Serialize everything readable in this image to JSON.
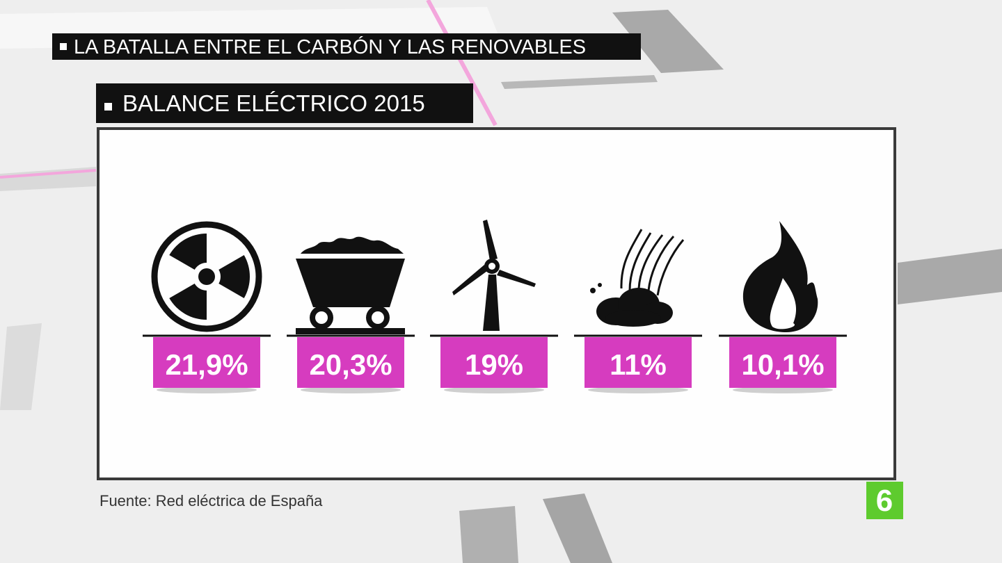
{
  "header": {
    "kicker": "LA BATALLA ENTRE EL CARBÓN Y LAS RENOVABLES",
    "title": "BALANCE ELÉCTRICO 2015"
  },
  "items": [
    "21,9%",
    "20,3%",
    "19%",
    "11%",
    "10,1%"
  ],
  "source": "Fuente: Red eléctrica de España",
  "logo": "6"
}
